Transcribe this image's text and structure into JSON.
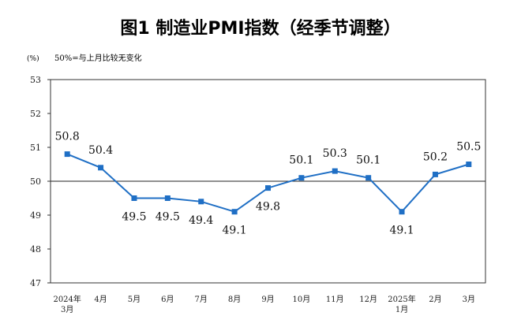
{
  "chart_data": {
    "type": "line",
    "title": "图1  制造业PMI指数（经季节调整）",
    "unit_label": "(%)",
    "reference_note": "50%=与上月比较无变化",
    "categories": [
      [
        "2024年",
        "3月"
      ],
      [
        "4月"
      ],
      [
        "5月"
      ],
      [
        "6月"
      ],
      [
        "7月"
      ],
      [
        "8月"
      ],
      [
        "9月"
      ],
      [
        "10月"
      ],
      [
        "11月"
      ],
      [
        "12月"
      ],
      [
        "2025年",
        "1月"
      ],
      [
        "2月"
      ],
      [
        "3月"
      ]
    ],
    "series": [
      {
        "values": [
          50.8,
          50.4,
          49.5,
          49.5,
          49.4,
          49.1,
          49.8,
          50.1,
          50.3,
          50.1,
          49.1,
          50.2,
          50.5
        ],
        "color": "#1f6fc5"
      }
    ],
    "data_labels": [
      "50.8",
      "50.4",
      "49.5",
      "49.5",
      "49.4",
      "49.1",
      "49.8",
      "50.1",
      "50.3",
      "50.1",
      "49.1",
      "50.2",
      "50.5"
    ],
    "label_side": [
      "above",
      "above",
      "below",
      "below",
      "below",
      "below",
      "below",
      "above",
      "above",
      "above",
      "below",
      "above",
      "above"
    ],
    "yticks": [
      "47",
      "48",
      "49",
      "50",
      "51",
      "52",
      "53"
    ],
    "ylim": [
      47,
      53
    ],
    "reference_value": 50,
    "grid": false,
    "legend": "none"
  }
}
